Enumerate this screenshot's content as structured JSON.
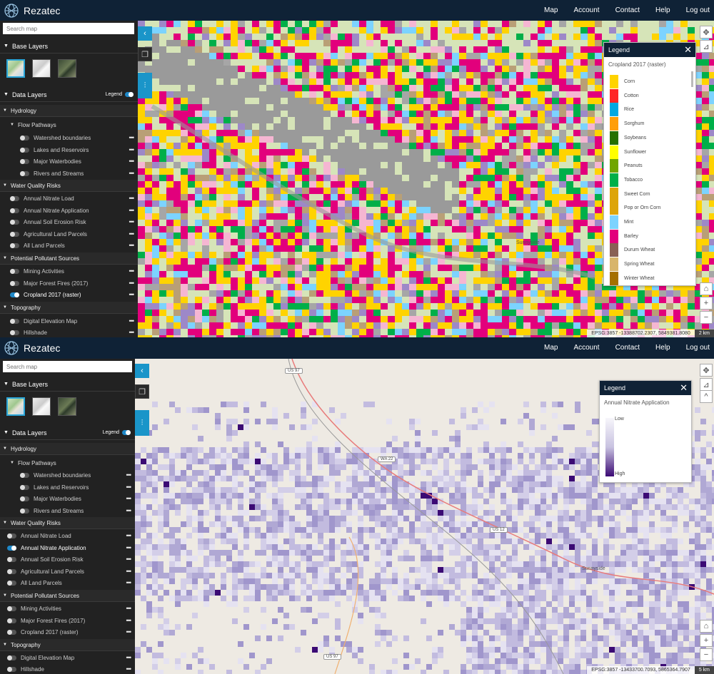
{
  "app": {
    "brand": "Rezatec",
    "nav": [
      "Map",
      "Account",
      "Contact",
      "Help",
      "Log out"
    ]
  },
  "sidebar": {
    "search_placeholder": "Search map",
    "base_layers_label": "Base Layers",
    "data_layers_label": "Data Layers",
    "legend_label": "Legend",
    "more_label": "•••",
    "groups": [
      {
        "label": "Hydrology"
      },
      {
        "label": "Water Quality Risks"
      },
      {
        "label": "Potential Pollutant Sources"
      },
      {
        "label": "Topography"
      }
    ],
    "flow_pathways_label": "Flow Pathways",
    "hydrology_layers": [
      "Watershed boundaries",
      "Lakes and Reservoirs",
      "Major Waterbodies",
      "Rivers and Streams"
    ],
    "water_quality_layers": [
      "Annual Nitrate Load",
      "Annual Nitrate Application",
      "Annual Soil Erosion Risk",
      "Agricultural Land Parcels",
      "All Land Parcels"
    ],
    "pollutant_layers": [
      "Mining Activities",
      "Major Forest Fires (2017)",
      "Cropland 2017 (raster)"
    ],
    "topography_layers": [
      "Digital Elevation Map",
      "Hillshade"
    ]
  },
  "screen1": {
    "active_layer": "Cropland 2017 (raster)",
    "legend_title": "Legend",
    "legend_subtitle": "Cropland 2017 (raster)",
    "legend_items": [
      {
        "label": "Corn",
        "color": "#ffd300"
      },
      {
        "label": "Cotton",
        "color": "#ff2626"
      },
      {
        "label": "Rice",
        "color": "#00a8e2"
      },
      {
        "label": "Sorghum",
        "color": "#ff9e0a"
      },
      {
        "label": "Soybeans",
        "color": "#267000"
      },
      {
        "label": "Sunflower",
        "color": "#ffff00"
      },
      {
        "label": "Peanuts",
        "color": "#70a500"
      },
      {
        "label": "Tobacco",
        "color": "#00af49"
      },
      {
        "label": "Sweet Corn",
        "color": "#dda50a"
      },
      {
        "label": "Pop or Orn Corn",
        "color": "#dda50a"
      },
      {
        "label": "Mint",
        "color": "#7cd3ff"
      },
      {
        "label": "Barley",
        "color": "#e2007c"
      },
      {
        "label": "Durum Wheat",
        "color": "#896054"
      },
      {
        "label": "Spring Wheat",
        "color": "#d8b56b"
      },
      {
        "label": "Winter Wheat",
        "color": "#a57000"
      }
    ],
    "coords": "EPSG:3857 -13388702.2307, 5849381.8080",
    "scale": "2 km",
    "place_labels": [
      "Sunnyside"
    ]
  },
  "screen2": {
    "active_layer": "Annual Nitrate Application",
    "legend_title": "Legend",
    "legend_subtitle": "Annual Nitrate Application",
    "legend_low": "Low",
    "legend_high": "High",
    "coords": "EPSG:3857 -13433700.7093, 5865364.7907",
    "scale": "5 km",
    "place_labels": [
      "Sunnyside"
    ],
    "road_shields": [
      "US 97",
      "WA 22",
      "US 12",
      "US 97"
    ]
  },
  "colors": {
    "topbar": "#0f2236",
    "sidebar": "#222222",
    "accent": "#1a95c9",
    "map_base": "#eeeae3",
    "crop_magenta": "#e2007c",
    "crop_yellow": "#ffd300",
    "crop_green": "#00af49",
    "nitrate_low": "#f2f0f8",
    "nitrate_high": "#3b0a74"
  },
  "icons": [
    "rezatec-globe-icon",
    "layers-icon",
    "chart-icon",
    "chevron-left-icon",
    "pan-icon",
    "ruler-icon",
    "home-icon",
    "zoom-in-icon",
    "zoom-out-icon",
    "chevron-up-icon",
    "close-icon"
  ]
}
